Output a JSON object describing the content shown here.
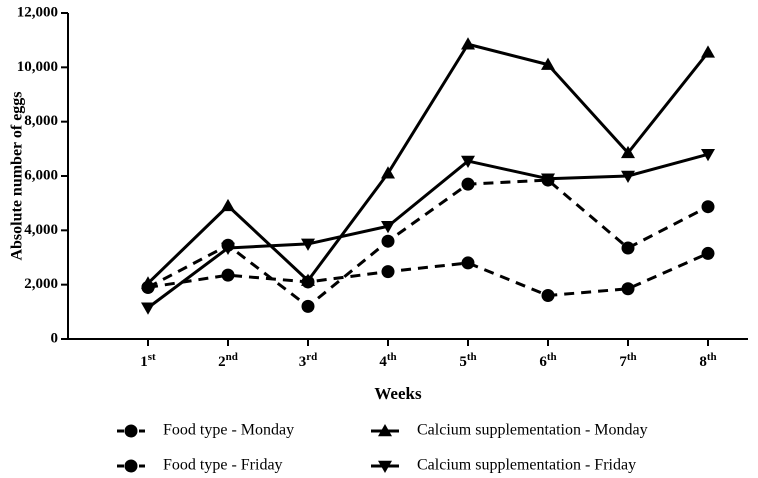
{
  "chart_data": {
    "type": "line",
    "x_label": "Weeks",
    "y_label": "Absolute number of eggs",
    "categories": [
      "1st",
      "2nd",
      "3rd",
      "4th",
      "5th",
      "6th",
      "7th",
      "8th"
    ],
    "series": [
      {
        "name": "Food type - Monday",
        "color": "#000000",
        "marker": "circle",
        "dash": true,
        "values": [
          1900,
          3450,
          1200,
          3600,
          5700,
          5850,
          3350,
          4870
        ]
      },
      {
        "name": "Food type - Friday",
        "color": "#000000",
        "marker": "circle",
        "dash": true,
        "values": [
          1900,
          2350,
          2100,
          2480,
          2800,
          1600,
          1850,
          3150
        ]
      },
      {
        "name": "Calcium supplementation - Monday",
        "color": "#000000",
        "marker": "triangle-up",
        "dash": false,
        "values": [
          2050,
          4900,
          2150,
          6100,
          10850,
          10100,
          6850,
          10550
        ]
      },
      {
        "name": "Calcium supplementation - Friday",
        "color": "#000000",
        "marker": "triangle-down",
        "dash": false,
        "values": [
          1150,
          3350,
          3500,
          4150,
          6550,
          5900,
          6000,
          6800
        ]
      }
    ],
    "ylim": [
      0,
      12000
    ],
    "yticks": [
      0,
      {
        "value": 2000,
        "label": "2,000"
      },
      {
        "value": 4000,
        "label": "4,000"
      },
      {
        "value": 6000,
        "label": "6,000"
      },
      {
        "value": 8000,
        "label": "8,000"
      },
      {
        "value": 10000,
        "label": "10,000"
      },
      {
        "value": 12000,
        "label": "12,000"
      }
    ],
    "legend": "bottom"
  }
}
